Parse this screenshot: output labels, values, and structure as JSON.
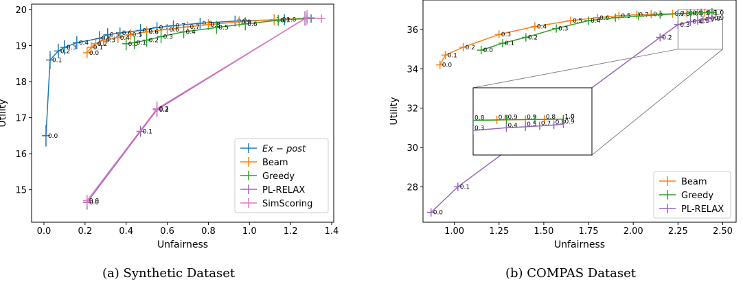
{
  "chart_data": [
    {
      "type": "line",
      "caption": "(a) Synthetic Dataset",
      "xlabel": "Unfairness",
      "ylabel": "Utility",
      "xlim": [
        -0.06,
        1.41
      ],
      "ylim": [
        14.1,
        20.15
      ],
      "xticks": [
        0.0,
        0.2,
        0.4,
        0.6,
        0.8,
        1.0,
        1.2,
        1.4
      ],
      "xtick_labels": [
        "0.0",
        "0.2",
        "0.4",
        "0.6",
        "0.8",
        "1.0",
        "1.2",
        "1.4"
      ],
      "yticks": [
        15,
        16,
        17,
        18,
        19,
        20
      ],
      "ytick_labels": [
        "15",
        "16",
        "17",
        "18",
        "19",
        "20"
      ],
      "legend_position": "bottom-right",
      "series": [
        {
          "name": "Ex − post",
          "color": "#1f77b4",
          "x": [
            0.01,
            0.03,
            0.07,
            0.1,
            0.16,
            0.27,
            0.31,
            0.37,
            0.47,
            0.55,
            0.63,
            0.76,
            0.93,
            1.17,
            1.3
          ],
          "y": [
            16.5,
            18.6,
            18.85,
            18.95,
            19.08,
            19.2,
            19.3,
            19.35,
            19.42,
            19.5,
            19.55,
            19.62,
            19.68,
            19.72,
            19.75
          ],
          "err": [
            0.3,
            0.25,
            0.2,
            0.2,
            0.18,
            0.2,
            0.18,
            0.15,
            0.18,
            0.15,
            0.15,
            0.15,
            0.15,
            0.15,
            0.1
          ],
          "labels": [
            "0.0",
            "0.1",
            "0.2",
            "0.3",
            "0.4",
            "0.5",
            "0.5",
            "0.6",
            "0.6",
            "0.7",
            "0.7",
            "0.8",
            "0.9",
            "1.0",
            ""
          ]
        },
        {
          "name": "Beam",
          "color": "#ff7f0e",
          "x": [
            0.21,
            0.23,
            0.25,
            0.29,
            0.36,
            0.42,
            0.5,
            0.6,
            0.7,
            0.8,
            0.95,
            1.12,
            1.28
          ],
          "y": [
            18.8,
            18.95,
            19.05,
            19.15,
            19.22,
            19.3,
            19.38,
            19.45,
            19.52,
            19.58,
            19.66,
            19.72,
            19.76
          ],
          "err": [
            0.15,
            0.15,
            0.15,
            0.15,
            0.15,
            0.15,
            0.15,
            0.15,
            0.15,
            0.15,
            0.15,
            0.15,
            0.1
          ],
          "labels": [
            "0.0",
            "0.1",
            "0.2",
            "0.3",
            "0.4",
            "0.5",
            "0.6",
            "0.6",
            "0.7",
            "0.8",
            "0.9",
            "1.0",
            ""
          ]
        },
        {
          "name": "Greedy",
          "color": "#2ca02c",
          "x": [
            0.4,
            0.44,
            0.5,
            0.57,
            0.68,
            0.84,
            0.98,
            1.14,
            1.28
          ],
          "y": [
            19.05,
            19.08,
            19.15,
            19.25,
            19.38,
            19.5,
            19.6,
            19.7,
            19.76
          ],
          "err": [
            0.18,
            0.18,
            0.18,
            0.18,
            0.18,
            0.18,
            0.18,
            0.15,
            0.1
          ],
          "labels": [
            "0.0",
            "0.1",
            "0.2",
            "0.3",
            "0.4",
            "0.5",
            "0.6",
            "0.7",
            ""
          ]
        },
        {
          "name": "PL-RELAX",
          "color": "#9467bd",
          "x": [
            0.21,
            0.47,
            0.55,
            1.27
          ],
          "y": [
            14.65,
            16.62,
            17.22,
            19.75
          ],
          "err": [
            0.2,
            0.15,
            0.2,
            0.2
          ],
          "labels": [
            "0.0",
            "0.1",
            "0.2",
            ""
          ]
        },
        {
          "name": "SimScoring",
          "color": "#e377c2",
          "x": [
            0.21,
            0.55,
            1.28,
            1.35
          ],
          "y": [
            14.7,
            17.25,
            19.78,
            19.75
          ],
          "err": [
            0.15,
            0.2,
            0.2,
            0.05
          ],
          "labels": [
            "0.0",
            "0.2",
            "",
            ""
          ]
        }
      ]
    },
    {
      "type": "line",
      "caption": "(b) COMPAS Dataset",
      "xlabel": "Unfairness",
      "ylabel": "Utility",
      "xlim": [
        0.825,
        2.575
      ],
      "ylim": [
        26.2,
        37.5
      ],
      "xticks": [
        1.0,
        1.25,
        1.5,
        1.75,
        2.0,
        2.25,
        2.5
      ],
      "xtick_labels": [
        "1.00",
        "1.25",
        "1.50",
        "1.75",
        "2.00",
        "2.25",
        "2.50"
      ],
      "yticks": [
        28,
        30,
        32,
        34,
        36
      ],
      "ytick_labels": [
        "28",
        "30",
        "32",
        "34",
        "36"
      ],
      "legend_position": "bottom-right",
      "inset": {
        "xlim": [
          2.25,
          2.5
        ],
        "ylim": [
          35.0,
          37.0
        ],
        "bbox_xlim": [
          2.25,
          2.5
        ],
        "bbox_ylim": [
          35.0,
          37.0
        ]
      },
      "series": [
        {
          "name": "Beam",
          "color": "#ff7f0e",
          "x": [
            0.92,
            0.95,
            1.05,
            1.25,
            1.45,
            1.65,
            1.8,
            1.92,
            2.02,
            2.1,
            2.22,
            2.3,
            2.36,
            2.4,
            2.44
          ],
          "y": [
            34.2,
            34.7,
            35.1,
            35.75,
            36.15,
            36.45,
            36.6,
            36.7,
            36.75,
            36.78,
            36.8,
            36.82,
            36.84,
            36.85,
            36.86
          ],
          "labels": [
            "0.0",
            "0.1",
            "0.2",
            "0.3",
            "0.4",
            "0.5",
            "0.6",
            "0.5",
            "0.7",
            "0.6",
            "0.7",
            "0.8",
            "0.9",
            "0.8",
            "1.0"
          ]
        },
        {
          "name": "Greedy",
          "color": "#2ca02c",
          "x": [
            1.15,
            1.27,
            1.4,
            1.57,
            1.75,
            1.9,
            2.03,
            2.15,
            2.25,
            2.32,
            2.38,
            2.44
          ],
          "y": [
            34.95,
            35.3,
            35.6,
            36.05,
            36.45,
            36.6,
            36.68,
            36.75,
            36.8,
            36.83,
            36.85,
            36.87
          ],
          "labels": [
            "0.0",
            "0.1",
            "0.2",
            "0.3",
            "0.4",
            "",
            "",
            "",
            "0.8",
            "0.9",
            "",
            "1.0"
          ]
        },
        {
          "name": "PL-RELAX",
          "color": "#9467bd",
          "x": [
            0.87,
            1.02,
            2.15,
            2.25,
            2.32,
            2.36,
            2.39,
            2.42,
            2.44
          ],
          "y": [
            26.7,
            28.0,
            35.6,
            36.25,
            36.4,
            36.45,
            36.5,
            36.55,
            36.6
          ],
          "labels": [
            "0.0",
            "0.1",
            "0.2",
            "0.3",
            "0.4",
            "0.5",
            "0.7",
            "0.8",
            "0.9"
          ]
        }
      ]
    }
  ]
}
